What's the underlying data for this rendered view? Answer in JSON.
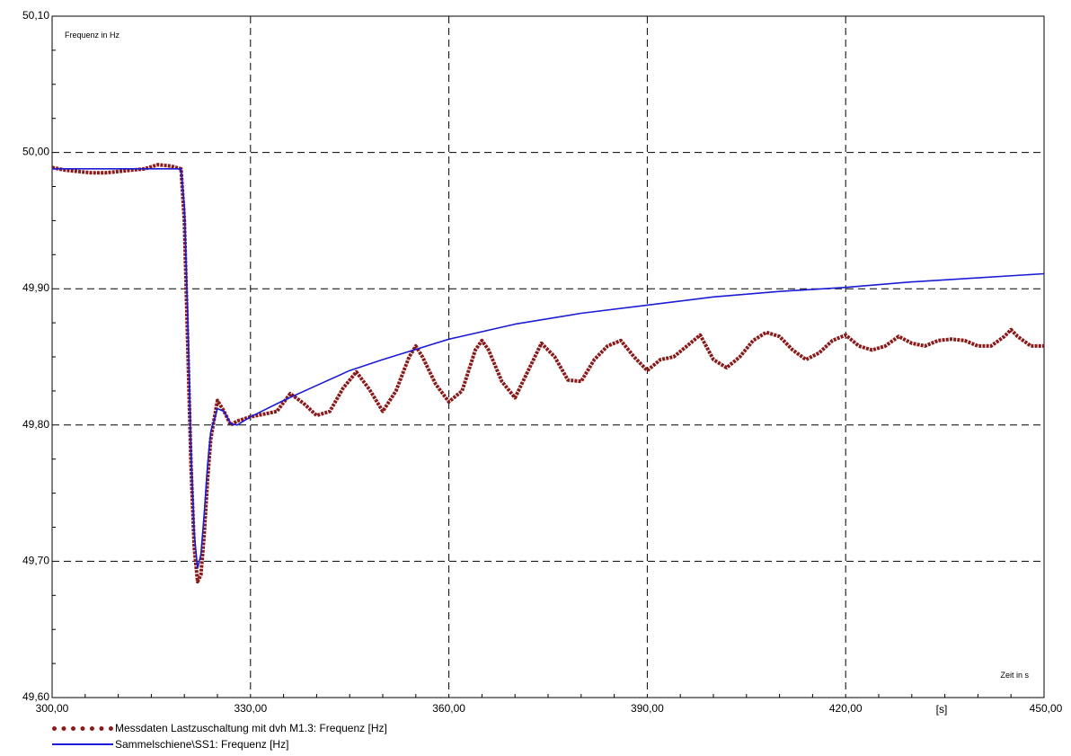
{
  "chart_data": {
    "type": "line",
    "title": "",
    "ylabel": "Frequenz in Hz",
    "xlabel": "Zeit in s",
    "x_unit": "[s]",
    "xlim": [
      300,
      450
    ],
    "ylim": [
      49.6,
      50.1
    ],
    "x_ticks": [
      300,
      330,
      360,
      390,
      420,
      450
    ],
    "x_tick_labels": [
      "300,00",
      "330,00",
      "360,00",
      "390,00",
      "420,00",
      "450,00"
    ],
    "y_ticks": [
      49.6,
      49.7,
      49.8,
      49.9,
      50.0,
      50.1
    ],
    "y_tick_labels": [
      "49,60",
      "49,70",
      "49,80",
      "49,90",
      "50,00",
      "50,10"
    ],
    "grid": true,
    "legend_position": "bottom-left",
    "series": [
      {
        "name": "Messdaten Lastzuschaltung mit dvh M1.3: Frequenz [Hz]",
        "color": "#8b1a1a",
        "style": "dotted",
        "x": [
          300,
          302,
          304,
          306,
          308,
          310,
          312,
          314,
          316,
          318,
          319.5,
          320,
          320.5,
          321,
          321.5,
          322,
          322.5,
          323,
          323.5,
          324,
          325,
          326,
          327,
          328,
          330,
          332,
          334,
          336,
          338,
          340,
          342,
          344,
          346,
          348,
          350,
          352,
          354,
          355,
          356,
          358,
          360,
          362,
          364,
          365,
          366,
          368,
          370,
          372,
          374,
          376,
          378,
          380,
          382,
          384,
          386,
          388,
          390,
          392,
          394,
          396,
          398,
          400,
          402,
          404,
          406,
          408,
          410,
          412,
          414,
          416,
          418,
          420,
          422,
          424,
          426,
          428,
          430,
          432,
          434,
          436,
          438,
          440,
          442,
          444,
          445,
          446,
          448,
          450
        ],
        "y": [
          49.989,
          49.987,
          49.986,
          49.985,
          49.985,
          49.986,
          49.987,
          49.988,
          49.991,
          49.99,
          49.988,
          49.95,
          49.86,
          49.77,
          49.71,
          49.685,
          49.69,
          49.72,
          49.76,
          49.79,
          49.818,
          49.81,
          49.8,
          49.803,
          49.806,
          49.808,
          49.81,
          49.823,
          49.816,
          49.807,
          49.81,
          49.827,
          49.839,
          49.826,
          49.81,
          49.825,
          49.85,
          49.858,
          49.85,
          49.83,
          49.817,
          49.825,
          49.855,
          49.862,
          49.855,
          49.832,
          49.82,
          49.84,
          49.86,
          49.85,
          49.833,
          49.832,
          49.848,
          49.858,
          49.862,
          49.85,
          49.84,
          49.848,
          49.85,
          49.858,
          49.866,
          49.848,
          49.842,
          49.85,
          49.862,
          49.868,
          49.865,
          49.855,
          49.848,
          49.853,
          49.862,
          49.866,
          49.858,
          49.855,
          49.858,
          49.865,
          49.86,
          49.858,
          49.862,
          49.863,
          49.862,
          49.858,
          49.858,
          49.865,
          49.87,
          49.865,
          49.858,
          49.858
        ]
      },
      {
        "name": "Sammelschiene\\SS1: Frequenz [Hz]",
        "color": "#1c1cd6",
        "style": "solid",
        "x": [
          300,
          310,
          319.5,
          320,
          320.5,
          321,
          321.5,
          322,
          322.5,
          323,
          323.5,
          324,
          325,
          326,
          327,
          328,
          330,
          335,
          340,
          345,
          350,
          360,
          370,
          380,
          390,
          400,
          410,
          420,
          430,
          440,
          450
        ],
        "y": [
          49.988,
          49.988,
          49.988,
          49.96,
          49.88,
          49.78,
          49.72,
          49.695,
          49.705,
          49.735,
          49.77,
          49.795,
          49.812,
          49.81,
          49.801,
          49.8,
          49.806,
          49.818,
          49.829,
          49.84,
          49.848,
          49.863,
          49.874,
          49.882,
          49.888,
          49.894,
          49.898,
          49.901,
          49.905,
          49.908,
          49.911
        ]
      }
    ]
  },
  "legend": {
    "entries": [
      "Messdaten Lastzuschaltung mit dvh M1.3: Frequenz [Hz]",
      "Sammelschiene\\SS1: Frequenz [Hz]"
    ]
  }
}
